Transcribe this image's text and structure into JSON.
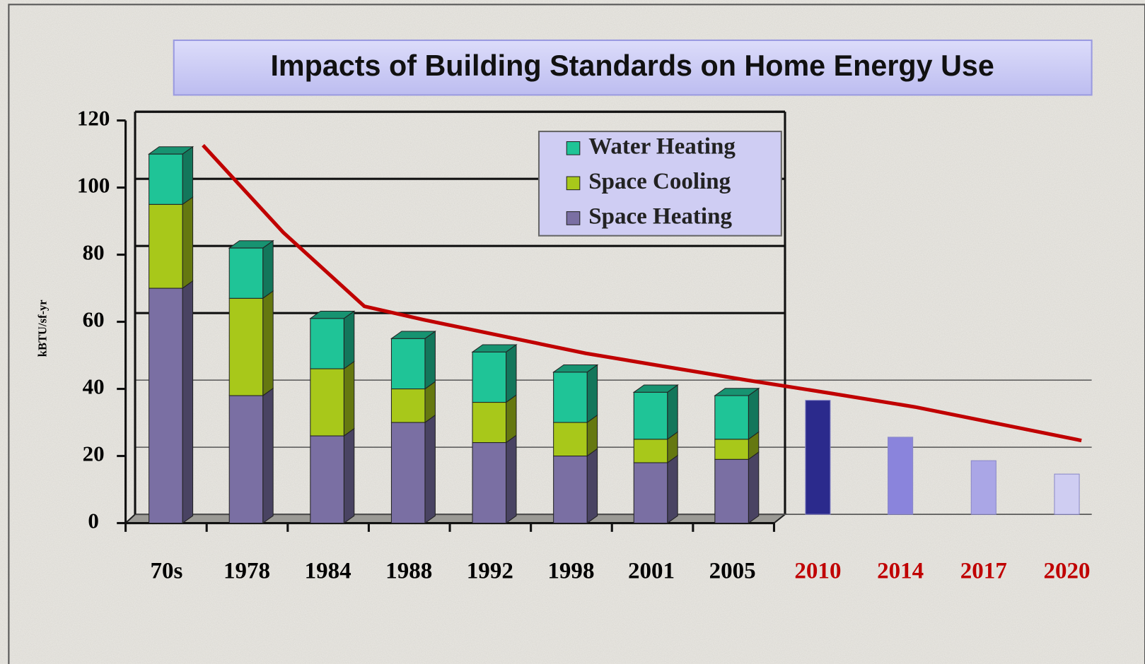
{
  "chart_data": {
    "type": "stacked_bar",
    "title": "Impacts of Building Standards on Home Energy Use",
    "y_label": "kBTU/sf-yr",
    "categories": [
      "70s",
      "1978",
      "1984",
      "1988",
      "1992",
      "1998",
      "2001",
      "2005",
      "2010",
      "2014",
      "2017",
      "2020"
    ],
    "category_colors": [
      "#000000",
      "#000000",
      "#000000",
      "#000000",
      "#000000",
      "#000000",
      "#000000",
      "#000000",
      "#c00000",
      "#c00000",
      "#c00000",
      "#c00000"
    ],
    "series": [
      {
        "name": "Space Heating",
        "color": "#7a6fa3",
        "values": [
          70,
          38,
          26,
          30,
          24,
          20,
          18,
          19,
          null,
          null,
          null,
          null
        ]
      },
      {
        "name": "Space Cooling",
        "color": "#a8c81a",
        "values": [
          25,
          29,
          20,
          10,
          12,
          10,
          7,
          6,
          null,
          null,
          null,
          null
        ]
      },
      {
        "name": "Water Heating",
        "color": "#1fc497",
        "values": [
          15,
          15,
          15,
          15,
          15,
          15,
          14,
          13,
          null,
          null,
          null,
          null
        ]
      }
    ],
    "projection": {
      "values": [
        null,
        null,
        null,
        null,
        null,
        null,
        null,
        null,
        34,
        23,
        16,
        12
      ],
      "colors": [
        "#2b2a8c",
        "#8a84dc",
        "#aaa6e6",
        "#cfcdf2"
      ]
    },
    "line": {
      "color": "#c00000",
      "values": [
        110,
        84,
        62,
        58,
        53,
        48,
        44,
        40,
        36,
        32,
        27,
        22
      ]
    },
    "ylim": [
      0,
      120
    ],
    "yticks": [
      0,
      20,
      40,
      60,
      80,
      100,
      120
    ],
    "grid": true,
    "legend": "upper right"
  }
}
